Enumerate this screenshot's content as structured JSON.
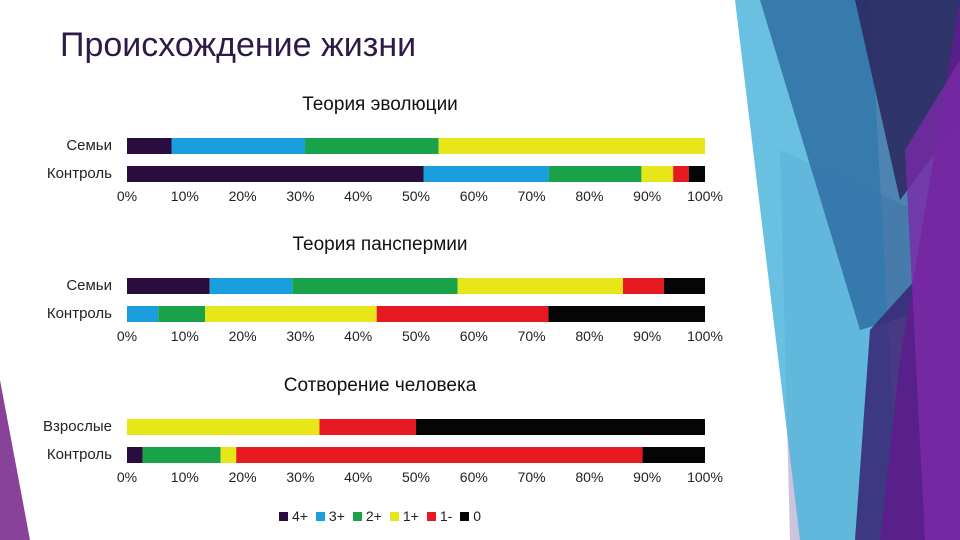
{
  "page_title": "Происхождение жизни",
  "colors": {
    "4+": "#2a0c3f",
    "3+": "#1a9fdc",
    "2+": "#19a24a",
    "1+": "#e6e619",
    "1-": "#e5191f",
    "0": "#050505"
  },
  "legend": [
    {
      "key": "4+",
      "label": "4+"
    },
    {
      "key": "3+",
      "label": "3+"
    },
    {
      "key": "2+",
      "label": "2+"
    },
    {
      "key": "1+",
      "label": "1+"
    },
    {
      "key": "1-",
      "label": "1-"
    },
    {
      "key": "0",
      "label": "0"
    }
  ],
  "chart_data": [
    {
      "type": "bar",
      "stacked": true,
      "orientation": "horizontal",
      "title": "Теория эволюции",
      "categories": [
        "Семьи",
        "Контроль"
      ],
      "xlim": [
        0,
        100
      ],
      "ticks": [
        "0%",
        "10%",
        "20%",
        "30%",
        "40%",
        "50%",
        "60%",
        "70%",
        "80%",
        "90%",
        "100%"
      ],
      "series": [
        {
          "name": "4+",
          "values": [
            7.7,
            51.3
          ]
        },
        {
          "name": "3+",
          "values": [
            23.1,
            21.7
          ]
        },
        {
          "name": "2+",
          "values": [
            23.1,
            16.0
          ]
        },
        {
          "name": "1+",
          "values": [
            46.1,
            5.5
          ]
        },
        {
          "name": "1-",
          "values": [
            0,
            2.7
          ]
        },
        {
          "name": "0",
          "values": [
            0,
            2.8
          ]
        }
      ]
    },
    {
      "type": "bar",
      "stacked": true,
      "orientation": "horizontal",
      "title": "Теория панспермии",
      "categories": [
        "Семьи",
        "Контроль"
      ],
      "xlim": [
        0,
        100
      ],
      "ticks": [
        "0%",
        "10%",
        "20%",
        "30%",
        "40%",
        "50%",
        "60%",
        "70%",
        "80%",
        "90%",
        "100%"
      ],
      "series": [
        {
          "name": "4+",
          "values": [
            14.3,
            0
          ]
        },
        {
          "name": "3+",
          "values": [
            14.3,
            5.4
          ]
        },
        {
          "name": "2+",
          "values": [
            28.6,
            8.1
          ]
        },
        {
          "name": "1+",
          "values": [
            28.6,
            29.7
          ]
        },
        {
          "name": "1-",
          "values": [
            7.1,
            29.7
          ]
        },
        {
          "name": "0",
          "values": [
            7.1,
            27.1
          ]
        }
      ]
    },
    {
      "type": "bar",
      "stacked": true,
      "orientation": "horizontal",
      "title": "Сотворение человека",
      "categories": [
        "Взрослые",
        "Контроль"
      ],
      "xlim": [
        0,
        100
      ],
      "ticks": [
        "0%",
        "10%",
        "20%",
        "30%",
        "40%",
        "50%",
        "60%",
        "70%",
        "80%",
        "90%",
        "100%"
      ],
      "series": [
        {
          "name": "4+",
          "values": [
            0,
            2.7
          ]
        },
        {
          "name": "3+",
          "values": [
            0,
            0
          ]
        },
        {
          "name": "2+",
          "values": [
            0,
            13.5
          ]
        },
        {
          "name": "1+",
          "values": [
            33.3,
            2.7
          ]
        },
        {
          "name": "1-",
          "values": [
            16.7,
            70.3
          ]
        },
        {
          "name": "0",
          "values": [
            50.0,
            10.8
          ]
        }
      ]
    }
  ]
}
